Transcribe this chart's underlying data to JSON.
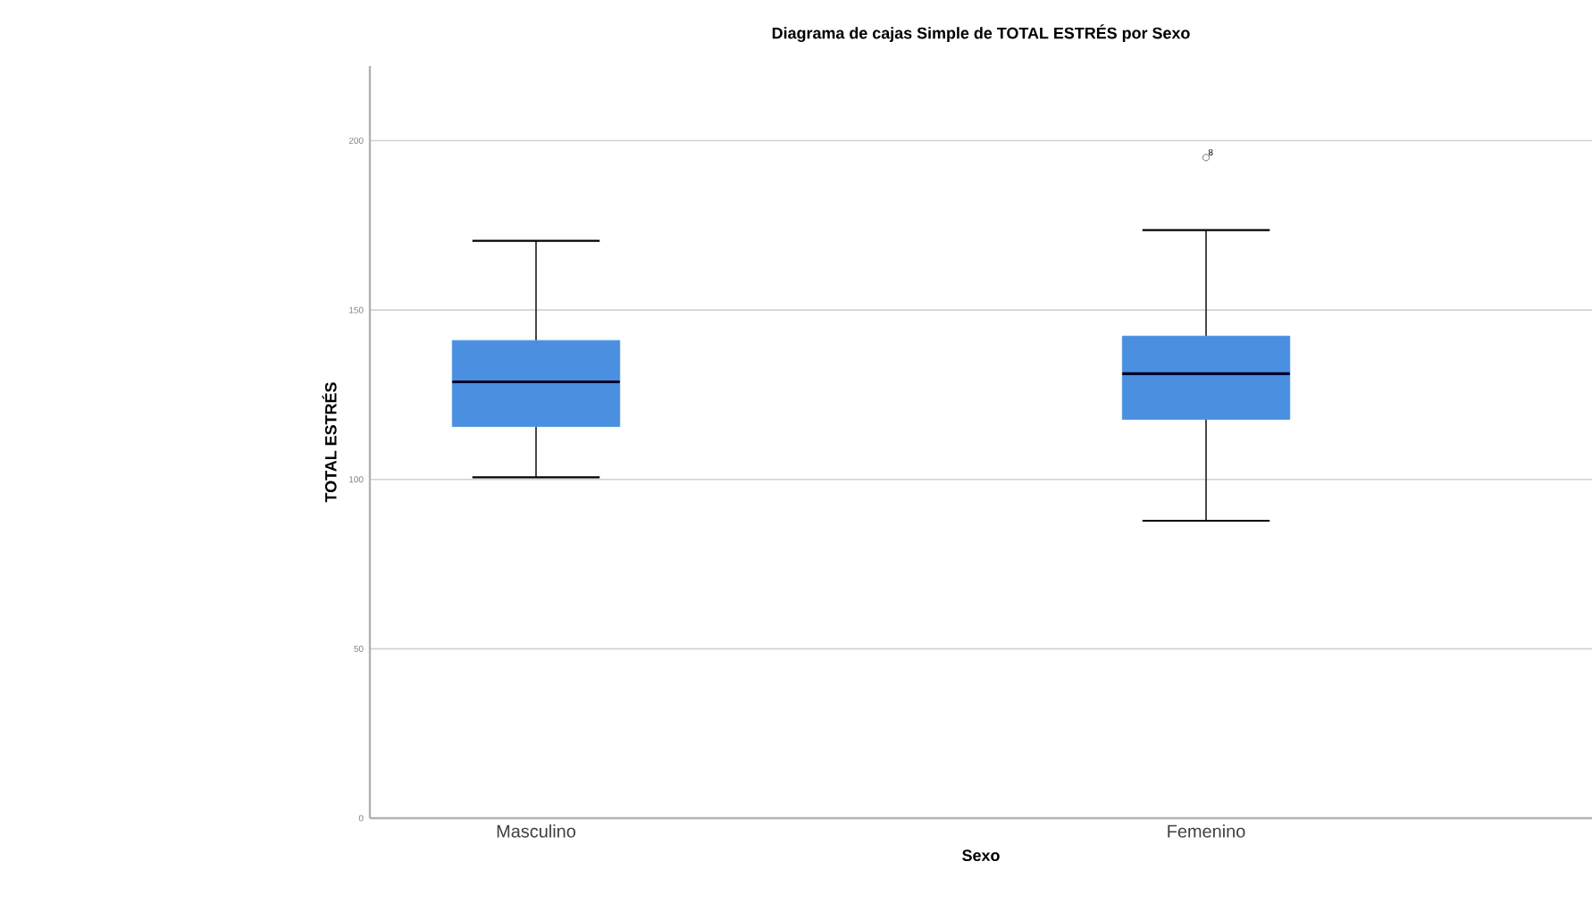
{
  "chart_data": {
    "type": "box",
    "title": "Diagrama de cajas Simple de TOTAL ESTRÉS por Sexo",
    "xlabel": "Sexo",
    "ylabel": "TOTAL ESTRÉS",
    "categories": [
      "Masculino",
      "Femenino"
    ],
    "boxes": [
      {
        "low": 100.6,
        "q1": 115.6,
        "median": 128.8,
        "q3": 141,
        "high": 170.4
      },
      {
        "low": 87.8,
        "q1": 117.7,
        "median": 131.2,
        "q3": 142.3,
        "high": 173.6,
        "outliers": [
          195
        ]
      }
    ],
    "color": "#4a8fe0",
    "ylim": [
      0,
      222
    ],
    "yticks": [
      0,
      50,
      100,
      150,
      200
    ],
    "grid": "y",
    "annotations": [
      "8"
    ]
  }
}
